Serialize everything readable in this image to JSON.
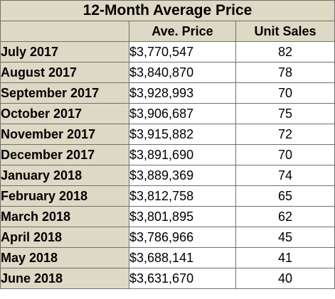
{
  "table": {
    "title": "12-Month Average Price",
    "headers": [
      "",
      "Ave. Price",
      "Unit Sales"
    ],
    "rows": [
      {
        "month": "July 2017",
        "price": "$3,770,547",
        "units": "82"
      },
      {
        "month": "August 2017",
        "price": "$3,840,870",
        "units": "78"
      },
      {
        "month": "September 2017",
        "price": "$3,928,993",
        "units": "70"
      },
      {
        "month": "October 2017",
        "price": "$3,906,687",
        "units": "75"
      },
      {
        "month": "November 2017",
        "price": "$3,915,882",
        "units": "72"
      },
      {
        "month": "December 2017",
        "price": "$3,891,690",
        "units": "70"
      },
      {
        "month": "January 2018",
        "price": "$3,889,369",
        "units": "74"
      },
      {
        "month": "February 2018",
        "price": "$3,812,758",
        "units": "65"
      },
      {
        "month": "March 2018",
        "price": "$3,801,895",
        "units": "62"
      },
      {
        "month": "April 2018",
        "price": "$3,786,966",
        "units": "45"
      },
      {
        "month": "May 2018",
        "price": "$3,688,141",
        "units": "41"
      },
      {
        "month": "June 2018",
        "price": "$3,631,670",
        "units": "40"
      }
    ]
  }
}
